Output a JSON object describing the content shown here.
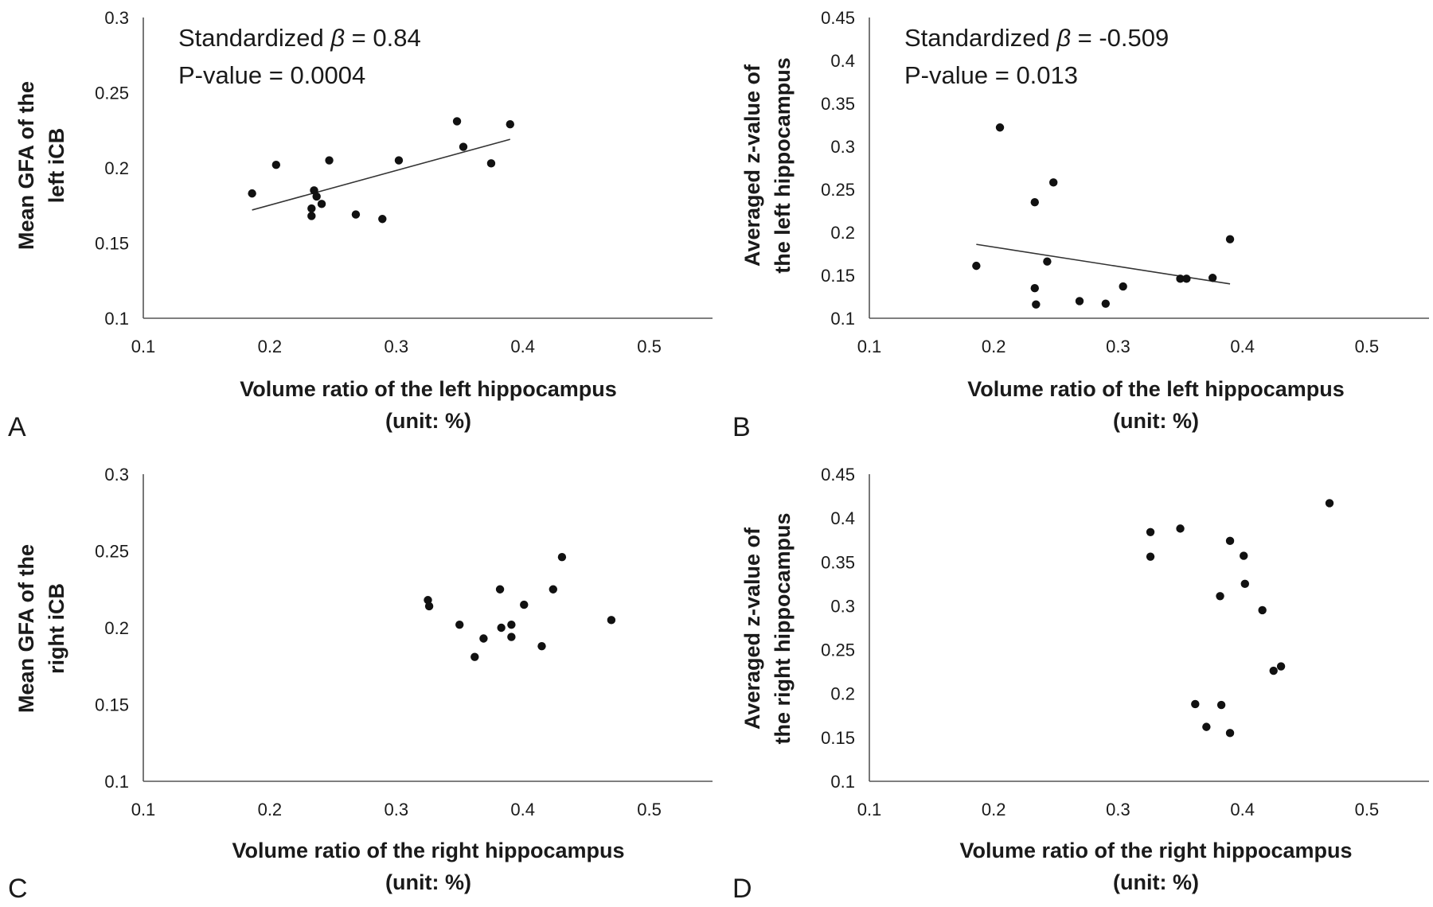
{
  "chart_data": [
    {
      "panel": "A",
      "type": "scatter",
      "xlabel": [
        "Volume ratio of the left hippocampus",
        "(unit: %)"
      ],
      "ylabel": [
        "Mean GFA of the",
        "left iCB"
      ],
      "xlim": [
        0.1,
        0.55
      ],
      "ylim": [
        0.1,
        0.3
      ],
      "xticks": [
        "0.1",
        "0.2",
        "0.3",
        "0.4",
        "0.5"
      ],
      "yticks": [
        "0.1",
        "0.15",
        "0.2",
        "0.25",
        "0.3"
      ],
      "annotation": {
        "beta_prefix": "Standardized ",
        "beta_symbol": "β",
        "beta_value": " = 0.84",
        "p_text": "P-value = 0.0004"
      },
      "trendline": {
        "x": [
          0.186,
          0.39
        ],
        "y": [
          0.172,
          0.219
        ]
      },
      "points": [
        {
          "x": 0.186,
          "y": 0.183
        },
        {
          "x": 0.205,
          "y": 0.202
        },
        {
          "x": 0.233,
          "y": 0.168
        },
        {
          "x": 0.233,
          "y": 0.173
        },
        {
          "x": 0.235,
          "y": 0.185
        },
        {
          "x": 0.237,
          "y": 0.181
        },
        {
          "x": 0.241,
          "y": 0.176
        },
        {
          "x": 0.247,
          "y": 0.205
        },
        {
          "x": 0.268,
          "y": 0.169
        },
        {
          "x": 0.289,
          "y": 0.166
        },
        {
          "x": 0.302,
          "y": 0.205
        },
        {
          "x": 0.348,
          "y": 0.231
        },
        {
          "x": 0.353,
          "y": 0.214
        },
        {
          "x": 0.375,
          "y": 0.203
        },
        {
          "x": 0.39,
          "y": 0.229
        }
      ]
    },
    {
      "panel": "B",
      "type": "scatter",
      "xlabel": [
        "Volume ratio of the left hippocampus",
        "(unit: %)"
      ],
      "ylabel": [
        "Averaged z-value of",
        "the left hippocampus"
      ],
      "xlim": [
        0.1,
        0.55
      ],
      "ylim": [
        0.1,
        0.45
      ],
      "xticks": [
        "0.1",
        "0.2",
        "0.3",
        "0.4",
        "0.5"
      ],
      "yticks": [
        "0.1",
        "0.15",
        "0.2",
        "0.25",
        "0.3",
        "0.35",
        "0.4",
        "0.45"
      ],
      "annotation": {
        "beta_prefix": "Standardized ",
        "beta_symbol": "β",
        "beta_value": " = -0.509",
        "p_text": "P-value = 0.013"
      },
      "trendline": {
        "x": [
          0.186,
          0.39
        ],
        "y": [
          0.186,
          0.14
        ]
      },
      "points": [
        {
          "x": 0.186,
          "y": 0.161
        },
        {
          "x": 0.205,
          "y": 0.322
        },
        {
          "x": 0.233,
          "y": 0.235
        },
        {
          "x": 0.233,
          "y": 0.135
        },
        {
          "x": 0.234,
          "y": 0.116
        },
        {
          "x": 0.243,
          "y": 0.166
        },
        {
          "x": 0.248,
          "y": 0.258
        },
        {
          "x": 0.269,
          "y": 0.12
        },
        {
          "x": 0.29,
          "y": 0.117
        },
        {
          "x": 0.304,
          "y": 0.137
        },
        {
          "x": 0.35,
          "y": 0.146
        },
        {
          "x": 0.355,
          "y": 0.146
        },
        {
          "x": 0.376,
          "y": 0.147
        },
        {
          "x": 0.39,
          "y": 0.192
        }
      ]
    },
    {
      "panel": "C",
      "type": "scatter",
      "xlabel": [
        "Volume ratio of the right hippocampus",
        "(unit: %)"
      ],
      "ylabel": [
        "Mean GFA of the",
        "right iCB"
      ],
      "xlim": [
        0.1,
        0.55
      ],
      "ylim": [
        0.1,
        0.3
      ],
      "xticks": [
        "0.1",
        "0.2",
        "0.3",
        "0.4",
        "0.5"
      ],
      "yticks": [
        "0.1",
        "0.15",
        "0.2",
        "0.25",
        "0.3"
      ],
      "points": [
        {
          "x": 0.325,
          "y": 0.218
        },
        {
          "x": 0.326,
          "y": 0.214
        },
        {
          "x": 0.35,
          "y": 0.202
        },
        {
          "x": 0.362,
          "y": 0.181
        },
        {
          "x": 0.369,
          "y": 0.193
        },
        {
          "x": 0.382,
          "y": 0.225
        },
        {
          "x": 0.383,
          "y": 0.2
        },
        {
          "x": 0.391,
          "y": 0.194
        },
        {
          "x": 0.391,
          "y": 0.202
        },
        {
          "x": 0.401,
          "y": 0.215
        },
        {
          "x": 0.415,
          "y": 0.188
        },
        {
          "x": 0.424,
          "y": 0.225
        },
        {
          "x": 0.431,
          "y": 0.246
        },
        {
          "x": 0.47,
          "y": 0.205
        }
      ]
    },
    {
      "panel": "D",
      "type": "scatter",
      "xlabel": [
        "Volume ratio of the right hippocampus",
        "(unit: %)"
      ],
      "ylabel": [
        "Averaged z-value of",
        "the right hippocampus"
      ],
      "xlim": [
        0.1,
        0.55
      ],
      "ylim": [
        0.1,
        0.45
      ],
      "xticks": [
        "0.1",
        "0.2",
        "0.3",
        "0.4",
        "0.5"
      ],
      "yticks": [
        "0.1",
        "0.15",
        "0.2",
        "0.25",
        "0.3",
        "0.35",
        "0.4",
        "0.45"
      ],
      "points": [
        {
          "x": 0.326,
          "y": 0.384
        },
        {
          "x": 0.326,
          "y": 0.356
        },
        {
          "x": 0.35,
          "y": 0.388
        },
        {
          "x": 0.362,
          "y": 0.188
        },
        {
          "x": 0.371,
          "y": 0.162
        },
        {
          "x": 0.382,
          "y": 0.311
        },
        {
          "x": 0.383,
          "y": 0.187
        },
        {
          "x": 0.39,
          "y": 0.374
        },
        {
          "x": 0.39,
          "y": 0.155
        },
        {
          "x": 0.401,
          "y": 0.357
        },
        {
          "x": 0.402,
          "y": 0.325
        },
        {
          "x": 0.416,
          "y": 0.295
        },
        {
          "x": 0.425,
          "y": 0.226
        },
        {
          "x": 0.431,
          "y": 0.231
        },
        {
          "x": 0.47,
          "y": 0.417
        }
      ]
    }
  ]
}
